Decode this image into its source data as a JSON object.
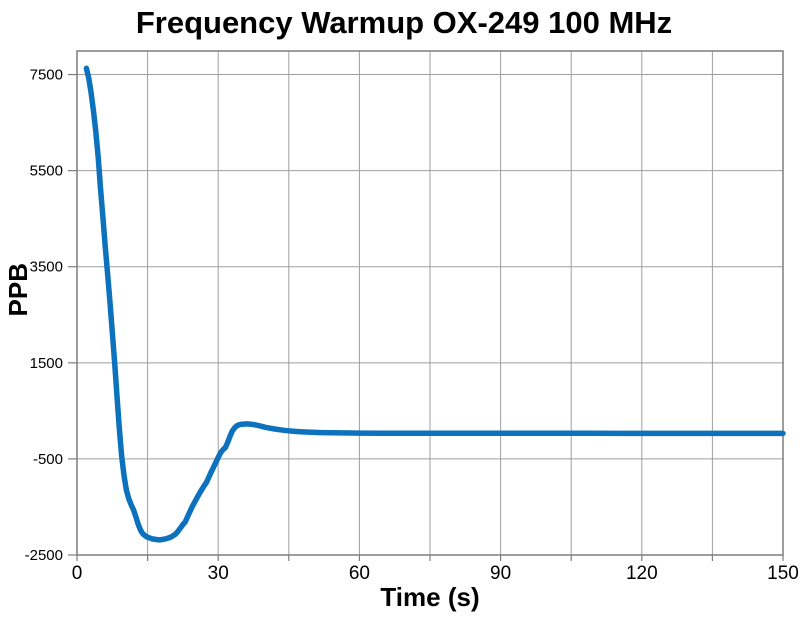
{
  "chart": {
    "title": "Frequency Warmup OX-249 100 MHz",
    "x_axis_label": "Time (s)",
    "y_axis_label": "PPB"
  },
  "chart_data": {
    "type": "line",
    "title": "Frequency Warmup OX-249 100 MHz",
    "xlabel": "Time (s)",
    "ylabel": "PPB",
    "xlim": [
      0,
      150
    ],
    "ylim": [
      -2500,
      7990
    ],
    "x_major_ticks": [
      0,
      30,
      60,
      90,
      120,
      150
    ],
    "x_tick_labels": [
      "0",
      "30",
      "60",
      "90",
      "120",
      "150"
    ],
    "x_gridline_interval": 15,
    "y_ticks": [
      -2500,
      -500,
      1500,
      3500,
      5500,
      7500
    ],
    "y_tick_labels": [
      "-2500",
      "-500",
      "1500",
      "3500",
      "5500",
      "7500"
    ],
    "grid": true,
    "legend": false,
    "line_color": "#0d72bd",
    "line_width": 5.5,
    "grid_color": "#9e9e9e",
    "frame_color": "#7d7d7d",
    "text_color": "#000000",
    "background_color": "#ffffff",
    "series": [
      {
        "name": "PPB",
        "points": [
          [
            2,
            7630
          ],
          [
            2.5,
            7420
          ],
          [
            3,
            7120
          ],
          [
            3.5,
            6740
          ],
          [
            4,
            6310
          ],
          [
            4.5,
            5780
          ],
          [
            5,
            5130
          ],
          [
            5.5,
            4530
          ],
          [
            6,
            3930
          ],
          [
            6.5,
            3350
          ],
          [
            7,
            2780
          ],
          [
            7.5,
            2140
          ],
          [
            8,
            1490
          ],
          [
            8.5,
            800
          ],
          [
            9,
            110
          ],
          [
            9.5,
            -450
          ],
          [
            10,
            -860
          ],
          [
            10.5,
            -1150
          ],
          [
            11,
            -1330
          ],
          [
            11.5,
            -1450
          ],
          [
            12,
            -1560
          ],
          [
            12.5,
            -1700
          ],
          [
            13,
            -1860
          ],
          [
            13.5,
            -1980
          ],
          [
            14,
            -2060
          ],
          [
            14.5,
            -2100
          ],
          [
            15,
            -2130
          ],
          [
            16,
            -2165
          ],
          [
            17,
            -2180
          ],
          [
            17.5,
            -2185
          ],
          [
            18,
            -2180
          ],
          [
            19,
            -2160
          ],
          [
            20,
            -2125
          ],
          [
            21,
            -2060
          ],
          [
            21.5,
            -2000
          ],
          [
            22,
            -1935
          ],
          [
            22.5,
            -1865
          ],
          [
            23,
            -1810
          ],
          [
            23.5,
            -1700
          ],
          [
            24,
            -1595
          ],
          [
            24.5,
            -1490
          ],
          [
            25,
            -1400
          ],
          [
            25.5,
            -1310
          ],
          [
            26,
            -1220
          ],
          [
            26.5,
            -1140
          ],
          [
            27,
            -1060
          ],
          [
            27.5,
            -990
          ],
          [
            28,
            -880
          ],
          [
            28.5,
            -775
          ],
          [
            29,
            -675
          ],
          [
            29.5,
            -575
          ],
          [
            30,
            -470
          ],
          [
            30.5,
            -370
          ],
          [
            31,
            -310
          ],
          [
            31.5,
            -265
          ],
          [
            32,
            -160
          ],
          [
            32.5,
            -30
          ],
          [
            33,
            80
          ],
          [
            33.5,
            150
          ],
          [
            34,
            192
          ],
          [
            34.5,
            212
          ],
          [
            35,
            222
          ],
          [
            36,
            228
          ],
          [
            37,
            222
          ],
          [
            38,
            206
          ],
          [
            39,
            182
          ],
          [
            40,
            158
          ],
          [
            41,
            139
          ],
          [
            42,
            122
          ],
          [
            43,
            108
          ],
          [
            44,
            96
          ],
          [
            45,
            86
          ],
          [
            46,
            77
          ],
          [
            47,
            69
          ],
          [
            48,
            63
          ],
          [
            49,
            57
          ],
          [
            50,
            53
          ],
          [
            52,
            47
          ],
          [
            54,
            43
          ],
          [
            56,
            41
          ],
          [
            58,
            39
          ],
          [
            60,
            38
          ],
          [
            65,
            36
          ],
          [
            70,
            35
          ],
          [
            75,
            34
          ],
          [
            80,
            34
          ],
          [
            85,
            33
          ],
          [
            90,
            33
          ],
          [
            95,
            33
          ],
          [
            100,
            32
          ],
          [
            105,
            32
          ],
          [
            110,
            32
          ],
          [
            115,
            31
          ],
          [
            120,
            31
          ],
          [
            125,
            31
          ],
          [
            130,
            31
          ],
          [
            135,
            30
          ],
          [
            140,
            30
          ],
          [
            145,
            30
          ],
          [
            150,
            30
          ]
        ]
      }
    ]
  }
}
